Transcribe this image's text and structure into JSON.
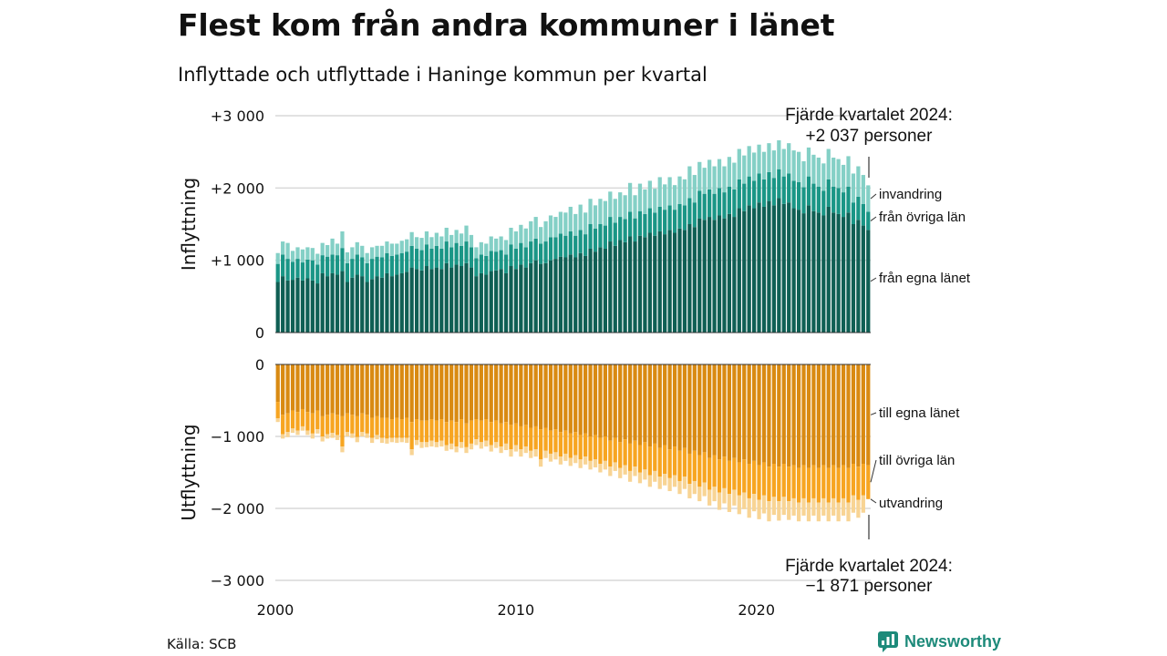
{
  "title": "Flest kom från andra kommuner i länet",
  "subtitle": "Inflyttade och utflyttade i Haninge kommun per kvartal",
  "source": "Källa: SCB",
  "brand": {
    "name": "Newsworthy",
    "icon": "newsworthy-logo-icon"
  },
  "colors": {
    "in_own": "#0f5f54",
    "in_other": "#1a9686",
    "in_immig": "#84d0c6",
    "out_own": "#d98a12",
    "out_other": "#f7a521",
    "out_emig": "#f8d494"
  },
  "chart_data": {
    "type": "bar",
    "stacked": true,
    "x_range": [
      2000,
      2024.75
    ],
    "x_ticks": [
      "2000",
      "2010",
      "2020"
    ],
    "x_tick_values": [
      2000,
      2010,
      2020
    ],
    "top_panel": {
      "ylabel": "Inflyttning",
      "ylim": [
        0,
        3000
      ],
      "y_ticks": [
        0,
        1000,
        2000,
        3000
      ],
      "y_tick_labels": [
        "0",
        "+1 000",
        "+2 000",
        "+3 000"
      ],
      "series_order_bottom_to_top": [
        "från egna länet",
        "från övriga län",
        "invandring"
      ],
      "series": [
        {
          "name": "från egna länet",
          "key": "in_own",
          "values": [
            700,
            780,
            720,
            730,
            760,
            720,
            750,
            720,
            680,
            820,
            780,
            820,
            800,
            850,
            700,
            760,
            800,
            780,
            700,
            740,
            780,
            760,
            820,
            780,
            800,
            820,
            840,
            900,
            880,
            860,
            920,
            880,
            900,
            880,
            960,
            900,
            940,
            920,
            960,
            900,
            780,
            820,
            800,
            850,
            860,
            880,
            820,
            920,
            880,
            940,
            900,
            960,
            1000,
            950,
            960,
            1000,
            1020,
            1050,
            1040,
            1080,
            1040,
            1100,
            1060,
            1160,
            1120,
            1180,
            1160,
            1260,
            1200,
            1280,
            1250,
            1330,
            1260,
            1340,
            1320,
            1380,
            1340,
            1400,
            1360,
            1420,
            1380,
            1440,
            1420,
            1500,
            1460,
            1580,
            1560,
            1600,
            1560,
            1620,
            1580,
            1640,
            1600,
            1720,
            1680,
            1760,
            1720,
            1800,
            1740,
            1820,
            1760,
            1860,
            1780,
            1800,
            1720,
            1700,
            1650,
            1760,
            1680,
            1660,
            1620,
            1740,
            1660,
            1640,
            1600,
            1660,
            1500,
            1560,
            1480,
            1420
          ]
        },
        {
          "name": "från övriga län",
          "key": "in_other",
          "values": [
            250,
            300,
            300,
            250,
            260,
            250,
            260,
            280,
            260,
            250,
            270,
            260,
            270,
            320,
            260,
            260,
            280,
            260,
            260,
            280,
            270,
            280,
            280,
            280,
            280,
            280,
            280,
            300,
            280,
            280,
            300,
            280,
            300,
            280,
            300,
            280,
            300,
            280,
            300,
            280,
            250,
            260,
            260,
            280,
            260,
            260,
            260,
            300,
            280,
            300,
            280,
            300,
            300,
            280,
            300,
            320,
            300,
            320,
            300,
            320,
            300,
            320,
            300,
            340,
            320,
            320,
            320,
            340,
            320,
            320,
            320,
            340,
            320,
            340,
            320,
            340,
            320,
            340,
            340,
            340,
            320,
            340,
            340,
            360,
            340,
            380,
            360,
            380,
            360,
            380,
            360,
            380,
            380,
            400,
            380,
            400,
            380,
            400,
            380,
            400,
            380,
            400,
            380,
            400,
            380,
            380,
            360,
            400,
            380,
            360,
            340,
            380,
            360,
            360,
            340,
            360,
            300,
            320,
            300,
            250
          ]
        },
        {
          "name": "invandring",
          "key": "in_immig",
          "values": [
            150,
            180,
            220,
            150,
            160,
            180,
            170,
            170,
            150,
            170,
            160,
            220,
            160,
            230,
            150,
            160,
            170,
            160,
            140,
            160,
            150,
            160,
            160,
            170,
            150,
            170,
            170,
            190,
            160,
            170,
            180,
            160,
            180,
            170,
            190,
            170,
            180,
            170,
            220,
            170,
            150,
            170,
            170,
            200,
            180,
            190,
            200,
            230,
            240,
            250,
            260,
            280,
            300,
            230,
            280,
            300,
            280,
            300,
            320,
            340,
            300,
            350,
            300,
            350,
            320,
            350,
            340,
            350,
            330,
            340,
            330,
            400,
            320,
            380,
            340,
            380,
            330,
            410,
            350,
            390,
            340,
            380,
            360,
            440,
            380,
            400,
            360,
            410,
            380,
            400,
            360,
            410,
            370,
            420,
            390,
            420,
            390,
            400,
            380,
            400,
            380,
            400,
            380,
            420,
            420,
            420,
            360,
            400,
            400,
            400,
            380,
            420,
            400,
            400,
            380,
            420,
            400,
            420,
            400,
            367
          ]
        }
      ]
    },
    "bottom_panel": {
      "ylabel": "Utflyttning",
      "ylim": [
        -3000,
        0
      ],
      "y_ticks": [
        0,
        -1000,
        -2000,
        -3000
      ],
      "y_tick_labels": [
        "0",
        "−1 000",
        "−2 000",
        "−3 000"
      ],
      "series_order_top_to_bottom": [
        "till egna länet",
        "till övriga län",
        "utvandring"
      ],
      "series": [
        {
          "name": "till egna länet",
          "key": "out_own",
          "values": [
            -520,
            -700,
            -680,
            -640,
            -660,
            -620,
            -660,
            -680,
            -640,
            -720,
            -700,
            -680,
            -700,
            -720,
            -680,
            -700,
            -720,
            -680,
            -700,
            -740,
            -720,
            -740,
            -740,
            -760,
            -740,
            -760,
            -740,
            -800,
            -760,
            -780,
            -780,
            -760,
            -780,
            -760,
            -800,
            -780,
            -800,
            -760,
            -820,
            -780,
            -760,
            -780,
            -760,
            -800,
            -780,
            -820,
            -800,
            -840,
            -820,
            -860,
            -840,
            -880,
            -860,
            -900,
            -880,
            -920,
            -900,
            -940,
            -920,
            -960,
            -940,
            -980,
            -960,
            -1000,
            -980,
            -1020,
            -1000,
            -1060,
            -1020,
            -1080,
            -1040,
            -1100,
            -1060,
            -1120,
            -1080,
            -1140,
            -1100,
            -1160,
            -1120,
            -1180,
            -1140,
            -1200,
            -1160,
            -1240,
            -1200,
            -1260,
            -1220,
            -1300,
            -1260,
            -1320,
            -1280,
            -1340,
            -1300,
            -1360,
            -1320,
            -1380,
            -1340,
            -1400,
            -1360,
            -1420,
            -1380,
            -1420,
            -1380,
            -1420,
            -1400,
            -1440,
            -1400,
            -1440,
            -1400,
            -1440,
            -1400,
            -1440,
            -1400,
            -1440,
            -1400,
            -1440,
            -1380,
            -1420,
            -1380,
            -1400
          ]
        },
        {
          "name": "till övriga län",
          "key": "out_other",
          "values": [
            -230,
            -270,
            -260,
            -250,
            -260,
            -240,
            -260,
            -280,
            -260,
            -280,
            -270,
            -270,
            -280,
            -420,
            -260,
            -260,
            -290,
            -260,
            -260,
            -280,
            -260,
            -280,
            -290,
            -260,
            -280,
            -260,
            -280,
            -380,
            -290,
            -300,
            -300,
            -300,
            -300,
            -300,
            -320,
            -320,
            -340,
            -320,
            -330,
            -320,
            -280,
            -300,
            -300,
            -320,
            -300,
            -320,
            -300,
            -340,
            -300,
            -320,
            -300,
            -320,
            -320,
            -420,
            -320,
            -320,
            -320,
            -340,
            -320,
            -340,
            -320,
            -340,
            -320,
            -340,
            -340,
            -360,
            -340,
            -360,
            -340,
            -360,
            -360,
            -380,
            -360,
            -380,
            -380,
            -400,
            -380,
            -400,
            -400,
            -400,
            -400,
            -420,
            -400,
            -420,
            -420,
            -440,
            -420,
            -440,
            -440,
            -460,
            -440,
            -460,
            -440,
            -460,
            -460,
            -480,
            -460,
            -480,
            -460,
            -480,
            -460,
            -480,
            -460,
            -480,
            -460,
            -480,
            -460,
            -480,
            -460,
            -480,
            -460,
            -480,
            -460,
            -480,
            -460,
            -480,
            -440,
            -460,
            -440,
            -471
          ]
        },
        {
          "name": "utvandring",
          "key": "out_emig",
          "values": [
            -50,
            -60,
            -70,
            -60,
            -60,
            -60,
            -60,
            -70,
            -60,
            -70,
            -60,
            -70,
            -70,
            -80,
            -60,
            -60,
            -70,
            -60,
            -60,
            -70,
            -60,
            -70,
            -70,
            -60,
            -70,
            -60,
            -70,
            -80,
            -70,
            -80,
            -70,
            -80,
            -70,
            -80,
            -80,
            -80,
            -80,
            -80,
            -80,
            -80,
            -80,
            -90,
            -80,
            -90,
            -80,
            -90,
            -90,
            -100,
            -90,
            -100,
            -90,
            -100,
            -100,
            -100,
            -100,
            -110,
            -100,
            -110,
            -100,
            -110,
            -110,
            -120,
            -110,
            -120,
            -110,
            -120,
            -120,
            -130,
            -120,
            -140,
            -130,
            -150,
            -130,
            -150,
            -140,
            -160,
            -150,
            -170,
            -160,
            -180,
            -160,
            -180,
            -170,
            -200,
            -180,
            -200,
            -190,
            -220,
            -200,
            -240,
            -210,
            -250,
            -220,
            -260,
            -230,
            -270,
            -240,
            -270,
            -250,
            -280,
            -250,
            -270,
            -250,
            -260,
            -240,
            -260,
            -240,
            -260,
            -240,
            -260,
            -240,
            -260,
            -240,
            -260,
            -240,
            -260,
            -240,
            -250,
            -240,
            0
          ]
        }
      ]
    },
    "annotations": {
      "top_line1": "Fjärde kvartalet 2024:",
      "top_line2": "+2 037 personer",
      "bottom_line1": "Fjärde kvartalet 2024:",
      "bottom_line2": "−1 871 personer"
    }
  }
}
